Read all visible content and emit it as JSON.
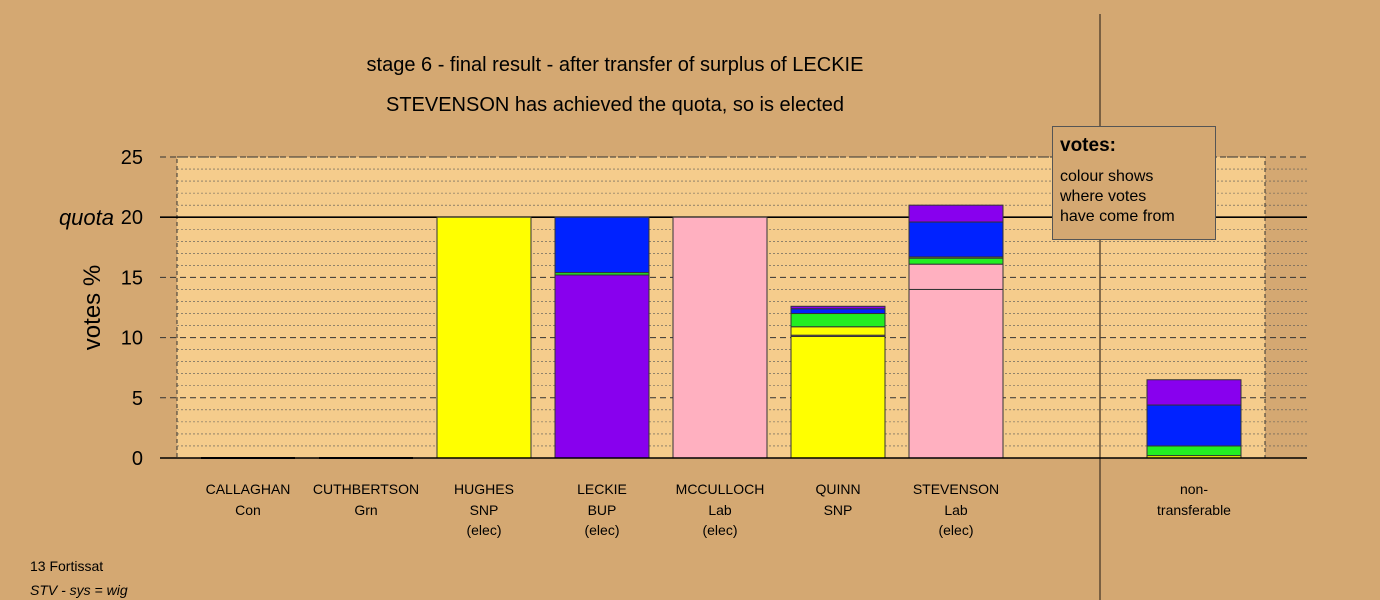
{
  "title_line1": "stage 6 - final result - after transfer of surplus of LECKIE",
  "title_line2": "STEVENSON has achieved the quota, so is elected",
  "legend": {
    "title": "votes:",
    "lines": [
      "colour shows",
      "where votes",
      "have come from"
    ]
  },
  "footer": {
    "line1": "13 Fortissat",
    "line2": "STV - sys = wig"
  },
  "colors": {
    "background": "#d4a872",
    "plot_area": "#f5cc8c",
    "Con": "#00dd88",
    "Grn": "#22ee22",
    "SNP": "#ffff00",
    "BUP": "#8800ee",
    "Lab": "#ffb0c0",
    "Other": "#0022ff"
  },
  "chart_data": {
    "type": "bar",
    "stacked": true,
    "ylabel": "votes %",
    "quota_label": "quota",
    "quota": 20,
    "ylim": [
      0,
      25
    ],
    "yticks": [
      0,
      5,
      10,
      15,
      20,
      25
    ],
    "candidates": [
      {
        "name": "CALLAGHAN",
        "party": "Con",
        "status": "",
        "segments": []
      },
      {
        "name": "CUTHBERTSON",
        "party": "Grn",
        "status": "",
        "segments": []
      },
      {
        "name": "HUGHES",
        "party": "SNP",
        "status": "(elec)",
        "segments": [
          {
            "source": "SNP",
            "value": 20.0
          }
        ]
      },
      {
        "name": "LECKIE",
        "party": "BUP",
        "status": "(elec)",
        "segments": [
          {
            "source": "BUP",
            "value": 15.2
          },
          {
            "source": "Grn",
            "value": 0.2
          },
          {
            "source": "Other",
            "value": 4.6
          }
        ]
      },
      {
        "name": "MCCULLOCH",
        "party": "Lab",
        "status": "(elec)",
        "segments": [
          {
            "source": "Lab",
            "value": 20.0
          }
        ]
      },
      {
        "name": "QUINN",
        "party": "SNP",
        "status": "",
        "segments": [
          {
            "source": "SNP",
            "value": 10.1
          },
          {
            "source": "Lab",
            "value": 0.1
          },
          {
            "source": "SNP",
            "value": 0.7
          },
          {
            "source": "Grn",
            "value": 1.1
          },
          {
            "source": "Other",
            "value": 0.4
          },
          {
            "source": "BUP",
            "value": 0.2
          }
        ]
      },
      {
        "name": "STEVENSON",
        "party": "Lab",
        "status": "(elec)",
        "segments": [
          {
            "source": "Lab",
            "value": 14.0
          },
          {
            "source": "Lab",
            "value": 2.1
          },
          {
            "source": "Grn",
            "value": 0.5
          },
          {
            "source": "SNP",
            "value": 0.1
          },
          {
            "source": "Other",
            "value": 2.9
          },
          {
            "source": "BUP",
            "value": 1.4
          }
        ]
      }
    ],
    "nontransferable": {
      "label_line1": "non-",
      "label_line2": "transferable",
      "segments": [
        {
          "source": "SNP",
          "value": 0.2
        },
        {
          "source": "Grn",
          "value": 0.8
        },
        {
          "source": "Other",
          "value": 3.4
        },
        {
          "source": "BUP",
          "value": 2.1
        }
      ]
    }
  }
}
